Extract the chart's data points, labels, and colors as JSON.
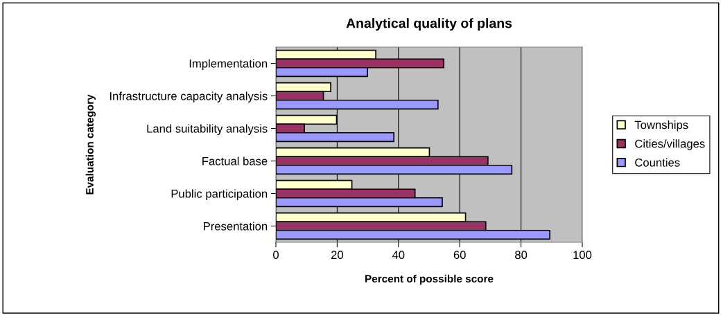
{
  "chart_data": {
    "type": "bar",
    "orientation": "horizontal",
    "title": "Analytical quality of plans",
    "xlabel": "Percent of possible score",
    "ylabel": "Evaluation category",
    "categories": [
      "Implementation",
      "Infrastructure capacity analysis",
      "Land suitability analysis",
      "Factual base",
      "Public participation",
      "Presentation"
    ],
    "series": [
      {
        "name": "Townships",
        "color": "#ffffcc",
        "values": [
          32.6,
          17.9,
          19.8,
          50.1,
          24.8,
          61.9
        ]
      },
      {
        "name": "Cities/villages",
        "color": "#993366",
        "values": [
          54.8,
          15.5,
          9.3,
          69.2,
          45.4,
          68.5
        ]
      },
      {
        "name": "Counties",
        "color": "#9999ff",
        "values": [
          29.9,
          52.9,
          38.5,
          77.0,
          54.3,
          89.4
        ]
      }
    ],
    "xlim": [
      0,
      100
    ],
    "xticks": [
      0,
      20,
      40,
      60,
      80,
      100
    ],
    "grid": "x",
    "legend": "right"
  }
}
